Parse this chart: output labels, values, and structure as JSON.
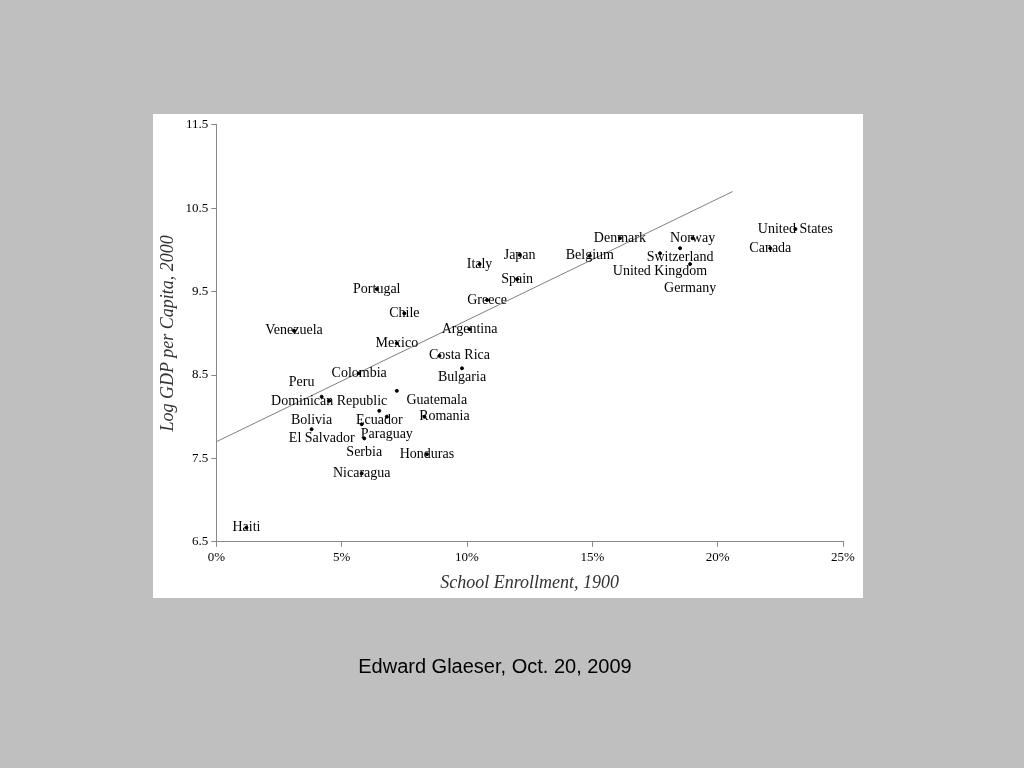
{
  "chart_data": {
    "type": "scatter",
    "xlabel": "School Enrollment, 1900",
    "ylabel": "Log GDP per Capita, 2000",
    "xlim": [
      0,
      25
    ],
    "xticks": [
      {
        "value": 0,
        "label": "0%"
      },
      {
        "value": 5,
        "label": "5%"
      },
      {
        "value": 10,
        "label": "10%"
      },
      {
        "value": 15,
        "label": "15%"
      },
      {
        "value": 20,
        "label": "20%"
      },
      {
        "value": 25,
        "label": "25%"
      }
    ],
    "ylim": [
      6.5,
      11.5
    ],
    "yticks": [
      6.5,
      7.5,
      8.5,
      9.5,
      10.5,
      11.5
    ],
    "grid": false,
    "legend": false,
    "series": [
      {
        "type": "scatter",
        "color": "#000000",
        "marker": "circle",
        "x": [
          23.1,
          22.1,
          16.1,
          19.0,
          18.5,
          17.7,
          18.9,
          14.9,
          10.5,
          12.1,
          12.0,
          10.8,
          6.4,
          7.5,
          3.1,
          10.1,
          7.2,
          8.9,
          9.8,
          5.7,
          4.5,
          4.2,
          7.2,
          6.5,
          6.8,
          8.3,
          5.8,
          3.8,
          5.9,
          8.4,
          5.8,
          1.2
        ],
        "values": [
          10.25,
          10.02,
          10.14,
          10.14,
          10.02,
          9.96,
          9.83,
          9.93,
          9.83,
          9.94,
          9.65,
          9.4,
          9.53,
          9.24,
          9.03,
          9.05,
          8.88,
          8.73,
          8.58,
          8.52,
          8.19,
          8.24,
          8.31,
          8.07,
          8.0,
          8.0,
          7.91,
          7.85,
          7.74,
          7.55,
          7.32,
          6.67
        ],
        "value_labels": [
          "United States",
          "Canada",
          "Denmark",
          "Norway",
          "Switzerland",
          "United Kingdom",
          "Germany",
          "Belgium",
          "Italy",
          "Japan",
          "Spain",
          "Greece",
          "Portugal",
          "Chile",
          "Venezuela",
          "Argentina",
          "Mexico",
          "Costa Rica",
          "Bulgaria",
          "Colombia",
          "Dominican Republic",
          "Peru",
          "Guatemala",
          "Ecuador",
          "Paraguay",
          "Romania",
          "El Salvador",
          "Bolivia",
          "Serbia",
          "Honduras",
          "Nicaragua",
          "Haiti"
        ]
      },
      {
        "type": "line",
        "color": "#808080",
        "marker": "none",
        "x": [
          0,
          20.6
        ],
        "values": [
          7.7,
          10.7
        ]
      }
    ],
    "annotations": [
      "Edward Glaeser, Oct. 20, 2009"
    ]
  }
}
